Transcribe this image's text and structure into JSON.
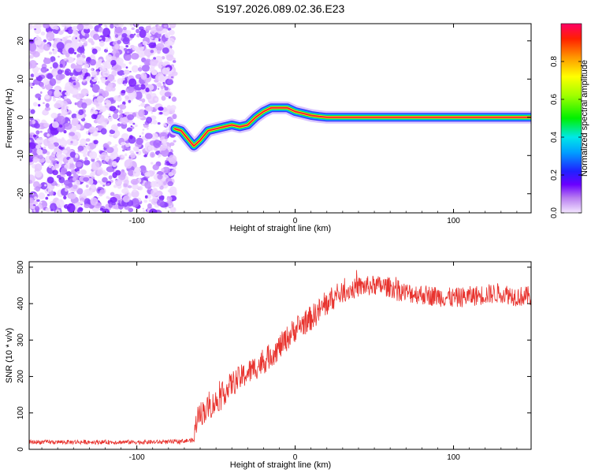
{
  "title": "S197.2026.089.02.36.E23",
  "chart_data": [
    {
      "type": "heatmap",
      "name": "spectrogram",
      "xlabel": "Height of straight line (km)",
      "ylabel": "Frequency (Hz)",
      "xlim": [
        -168,
        149
      ],
      "ylim": [
        -25,
        24.5
      ],
      "xticks": [
        -100,
        0,
        100
      ],
      "yticks": [
        -20,
        -10,
        0,
        10,
        20
      ],
      "noise_region_x": [
        -168,
        -76
      ],
      "ridge": {
        "x": [
          -76,
          -72,
          -68,
          -64,
          -60,
          -55,
          -50,
          -45,
          -40,
          -35,
          -30,
          -25,
          -20,
          -15,
          -10,
          -5,
          0,
          5,
          10,
          15,
          20,
          40,
          60,
          80,
          100,
          120,
          149
        ],
        "freq": [
          -3.0,
          -3.5,
          -5.5,
          -7.5,
          -6.0,
          -3.5,
          -3.0,
          -2.5,
          -2.0,
          -2.5,
          -2.0,
          0.0,
          1.5,
          2.5,
          2.5,
          2.5,
          1.5,
          1.0,
          0.5,
          0.2,
          0.0,
          0.0,
          0.0,
          0.0,
          0.0,
          0.0,
          0.0
        ]
      },
      "colorbar": {
        "label": "Normalized spectral amplitude",
        "range": [
          0,
          1
        ],
        "ticks": [
          "0.0",
          "0.2",
          "0.4",
          "0.6",
          "0.8"
        ]
      }
    },
    {
      "type": "line",
      "name": "snr",
      "xlabel": "Height of straight line (km)",
      "ylabel": "SNR (10 * v/v)",
      "xlim": [
        -168,
        149
      ],
      "ylim": [
        0,
        515
      ],
      "xticks": [
        -100,
        0,
        100
      ],
      "yticks": [
        0,
        100,
        200,
        300,
        400,
        500
      ],
      "color": "#e8332e",
      "trend": {
        "x": [
          -168,
          -80,
          -64,
          -62,
          -50,
          -40,
          -30,
          -20,
          -10,
          0,
          10,
          15,
          20,
          25,
          30,
          40,
          50,
          60,
          70,
          80,
          90,
          100,
          110,
          120,
          130,
          140,
          149
        ],
        "y": [
          20,
          20,
          25,
          90,
          130,
          180,
          210,
          240,
          280,
          330,
          360,
          380,
          400,
          420,
          430,
          445,
          450,
          445,
          430,
          425,
          420,
          415,
          420,
          425,
          430,
          420,
          420
        ]
      }
    }
  ]
}
